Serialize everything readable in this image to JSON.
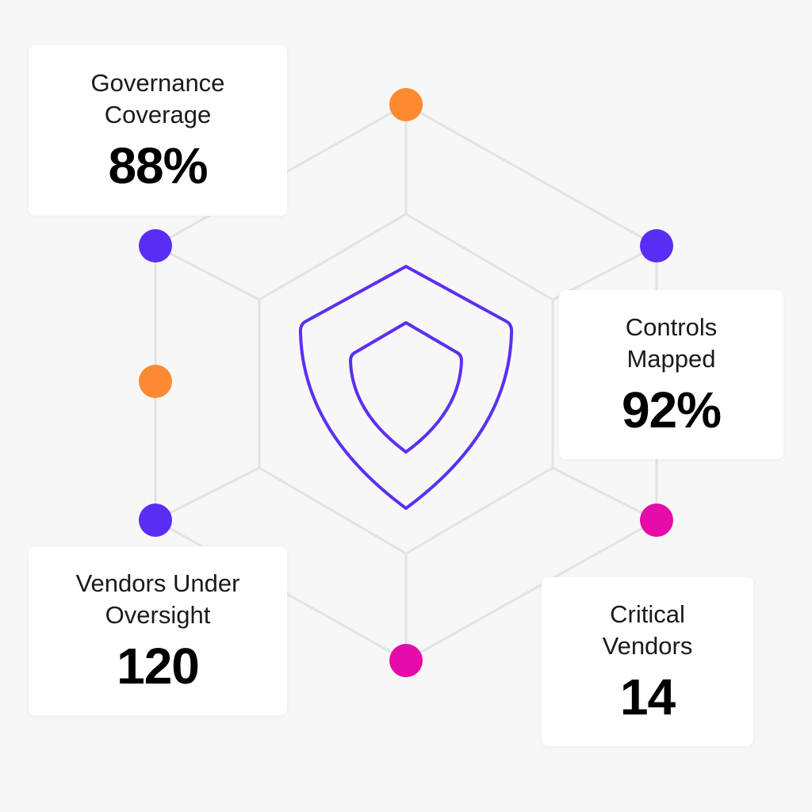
{
  "cards": {
    "governance": {
      "label": "Governance\nCoverage",
      "value": "88%"
    },
    "controls": {
      "label": "Controls\nMapped",
      "value": "92%"
    },
    "vendors": {
      "label": "Vendors Under\nOversight",
      "value": "120"
    },
    "critical": {
      "label": "Critical\nVendors",
      "value": "14"
    }
  },
  "colors": {
    "background": "#f7f7f8",
    "card": "#ffffff",
    "line": "#e2e2e4",
    "shield": "#5b2ff0",
    "orange": "#fb8a33",
    "purple": "#5a2df5",
    "magenta": "#e60aa8"
  },
  "nodes": [
    {
      "name": "node-top-orange",
      "color": "orange"
    },
    {
      "name": "node-upper-left-purple",
      "color": "purple"
    },
    {
      "name": "node-upper-right-purple",
      "color": "purple"
    },
    {
      "name": "node-left-orange",
      "color": "orange"
    },
    {
      "name": "node-lower-left-purple",
      "color": "purple"
    },
    {
      "name": "node-right-magenta",
      "color": "magenta"
    },
    {
      "name": "node-bottom-magenta",
      "color": "magenta"
    }
  ]
}
